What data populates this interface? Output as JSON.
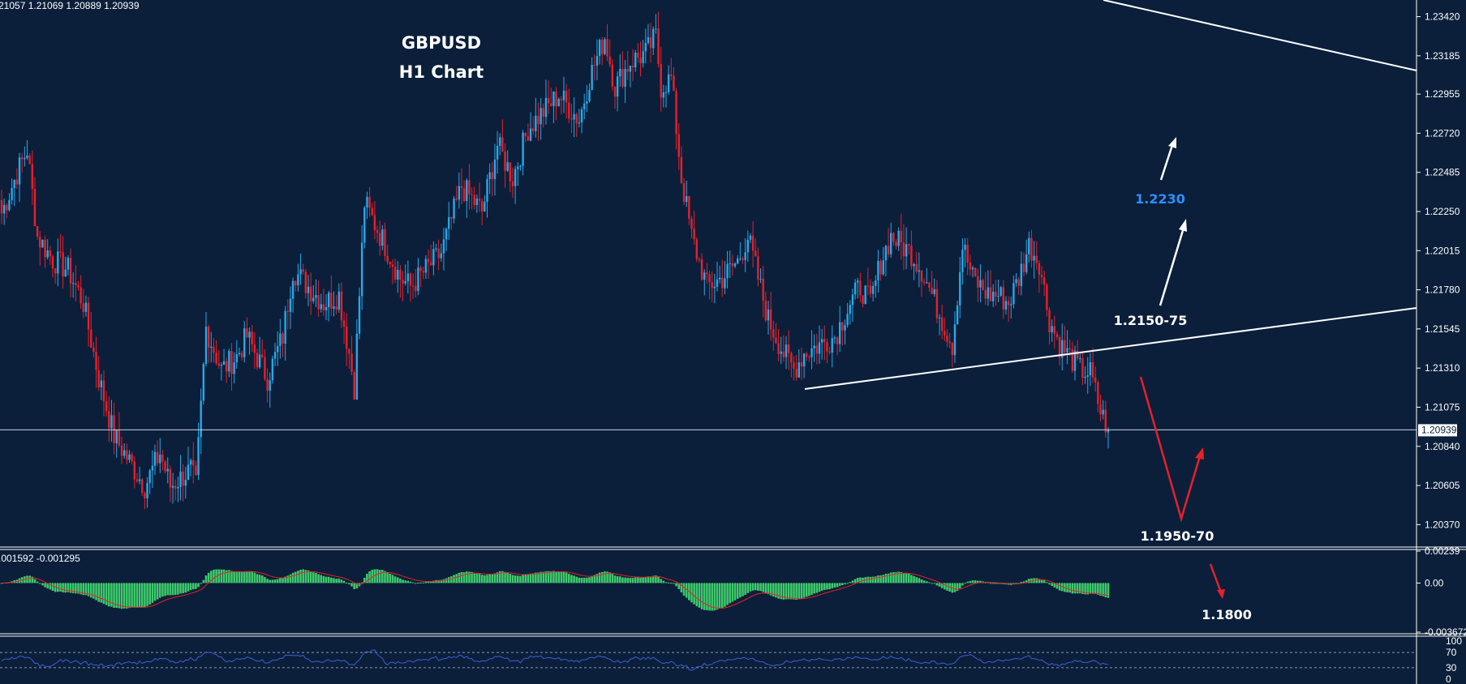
{
  "header": {
    "ohlc": "21057 1.21069 1.20889 1.20939",
    "title": "GBPUSD",
    "subtitle": "H1 Chart"
  },
  "colors": {
    "background": "#0b1f3a",
    "bull": "#29a8e8",
    "bear": "#e8202a",
    "hist": "#3ec96a",
    "signal": "#e8202a",
    "rsi": "#3b5fd6",
    "accent_blue": "#2e8fff",
    "white": "#ffffff"
  },
  "chart_data": [
    {
      "type": "candlestick",
      "symbol": "GBPUSD",
      "timeframe": "H1",
      "ylim": [
        1.2025,
        1.2352
      ],
      "y_ticks": [
        "1.23420",
        "1.23185",
        "1.22955",
        "1.22720",
        "1.22485",
        "1.22250",
        "1.22015",
        "1.21780",
        "1.21545",
        "1.21310",
        "1.21075",
        "1.20840",
        "1.20605",
        "1.20370"
      ],
      "current_price": "1.20939",
      "price_path": [
        [
          0,
          1.2224
        ],
        [
          6,
          1.2248
        ],
        [
          10,
          1.2262
        ],
        [
          14,
          1.221
        ],
        [
          20,
          1.2196
        ],
        [
          26,
          1.219
        ],
        [
          32,
          1.217
        ],
        [
          38,
          1.2125
        ],
        [
          44,
          1.209
        ],
        [
          50,
          1.2075
        ],
        [
          56,
          1.206
        ],
        [
          62,
          1.208
        ],
        [
          66,
          1.206
        ],
        [
          70,
          1.2065
        ],
        [
          74,
          1.207
        ],
        [
          76,
          1.206
        ],
        [
          80,
          1.2155
        ],
        [
          86,
          1.213
        ],
        [
          92,
          1.2138
        ],
        [
          96,
          1.215
        ],
        [
          104,
          1.2125
        ],
        [
          110,
          1.215
        ],
        [
          114,
          1.219
        ],
        [
          120,
          1.218
        ],
        [
          126,
          1.217
        ],
        [
          132,
          1.2175
        ],
        [
          136,
          1.214
        ],
        [
          138,
          1.212
        ],
        [
          142,
          1.223
        ],
        [
          150,
          1.2205
        ],
        [
          156,
          1.2185
        ],
        [
          160,
          1.218
        ],
        [
          166,
          1.219
        ],
        [
          172,
          1.22
        ],
        [
          180,
          1.224
        ],
        [
          188,
          1.2225
        ],
        [
          194,
          1.2265
        ],
        [
          200,
          1.2245
        ],
        [
          206,
          1.2275
        ],
        [
          212,
          1.2285
        ],
        [
          218,
          1.2295
        ],
        [
          226,
          1.228
        ],
        [
          230,
          1.2305
        ],
        [
          236,
          1.233
        ],
        [
          240,
          1.23
        ],
        [
          246,
          1.2315
        ],
        [
          252,
          1.232
        ],
        [
          256,
          1.233
        ],
        [
          258,
          1.23
        ],
        [
          262,
          1.2305
        ],
        [
          266,
          1.2245
        ],
        [
          270,
          1.221
        ],
        [
          276,
          1.218
        ],
        [
          282,
          1.2185
        ],
        [
          288,
          1.2195
        ],
        [
          292,
          1.221
        ],
        [
          296,
          1.2185
        ],
        [
          300,
          1.216
        ],
        [
          306,
          1.214
        ],
        [
          310,
          1.213
        ],
        [
          314,
          1.214
        ],
        [
          320,
          1.2145
        ],
        [
          326,
          1.215
        ],
        [
          332,
          1.217
        ],
        [
          336,
          1.218
        ],
        [
          340,
          1.217
        ],
        [
          344,
          1.2195
        ],
        [
          348,
          1.221
        ],
        [
          352,
          1.2205
        ],
        [
          356,
          1.22
        ],
        [
          360,
          1.219
        ],
        [
          364,
          1.2175
        ],
        [
          368,
          1.216
        ],
        [
          372,
          1.2145
        ],
        [
          376,
          1.2205
        ],
        [
          380,
          1.2185
        ],
        [
          386,
          1.2175
        ],
        [
          390,
          1.2175
        ],
        [
          394,
          1.217
        ],
        [
          398,
          1.2185
        ],
        [
          402,
          1.2205
        ],
        [
          406,
          1.2195
        ],
        [
          410,
          1.216
        ],
        [
          414,
          1.2145
        ],
        [
          418,
          1.2138
        ],
        [
          422,
          1.213
        ],
        [
          426,
          1.2128
        ],
        [
          430,
          1.2105
        ],
        [
          433,
          1.2094
        ]
      ]
    },
    {
      "type": "histogram",
      "indicator": "MACD",
      "readout": ".001592 -0.001295",
      "ylim": [
        -0.003672,
        0.00239
      ],
      "y_ticks": [
        "0.00239",
        "0.00",
        "-0.003672"
      ]
    },
    {
      "type": "line",
      "indicator": "RSI",
      "ylim": [
        0,
        100
      ],
      "levels": [
        70,
        30
      ],
      "y_ticks": [
        "100",
        "70",
        "30",
        "0"
      ]
    }
  ],
  "annotations": {
    "target_up": "1.2230",
    "resistance_zone": "1.2150-75",
    "support_zone": "1.1950-70",
    "target_down": "1.1800"
  }
}
